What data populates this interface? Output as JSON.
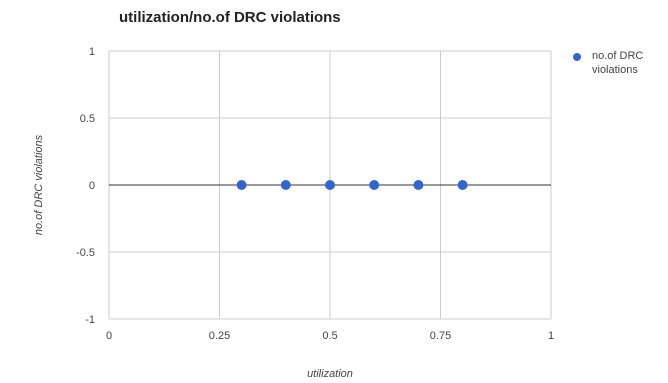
{
  "chart_data": {
    "type": "scatter",
    "title": "utilization/no.of DRC violations",
    "xlabel": "utilization",
    "ylabel": "no.of DRC violations",
    "xlim": [
      0,
      1
    ],
    "ylim": [
      -1,
      1
    ],
    "x_ticks": [
      "0",
      "0.25",
      "0.5",
      "0.75",
      "1"
    ],
    "y_ticks": [
      "1",
      "0.5",
      "0",
      "-0.5",
      "-1"
    ],
    "grid": true,
    "legend_position": "right",
    "series": [
      {
        "name": "no.of DRC violations",
        "color": "#3366cc",
        "points": [
          {
            "x": 0.3,
            "y": 0
          },
          {
            "x": 0.4,
            "y": 0
          },
          {
            "x": 0.5,
            "y": 0
          },
          {
            "x": 0.6,
            "y": 0
          },
          {
            "x": 0.7,
            "y": 0
          },
          {
            "x": 0.8,
            "y": 0
          }
        ]
      }
    ]
  }
}
